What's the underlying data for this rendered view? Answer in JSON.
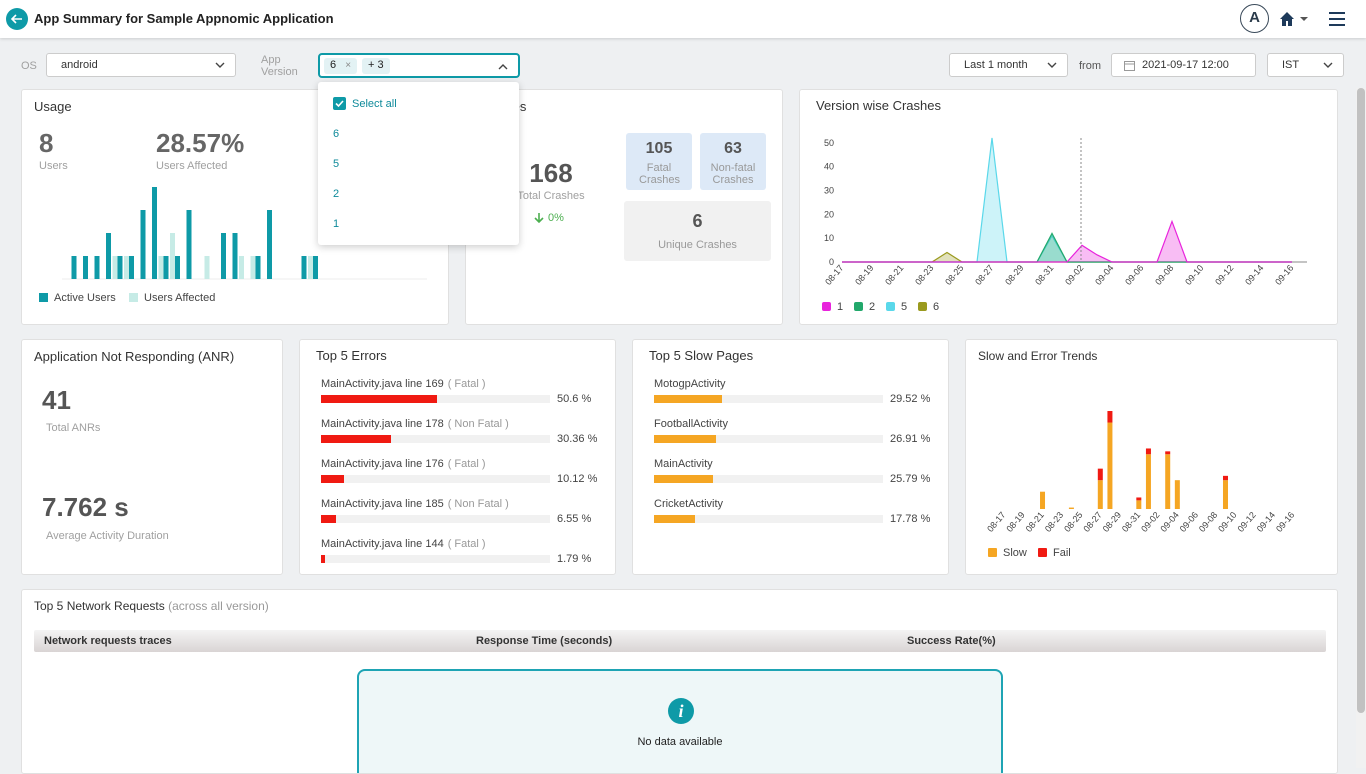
{
  "header": {
    "title": "App Summary for Sample Appnomic Application",
    "avatar": "A"
  },
  "filters": {
    "os_label": "OS",
    "os_value": "android",
    "version_label": "App Version",
    "version_chip": "6",
    "chip_remove": "×",
    "version_more": "+ 3",
    "range": "Last 1 month",
    "from_label": "from",
    "from_value": "2021-09-17 12:00",
    "timezone": "IST"
  },
  "version_dropdown": {
    "select_all": "Select all",
    "options": [
      "6",
      "5",
      "2",
      "1"
    ]
  },
  "usage": {
    "title": "Usage",
    "users": 8,
    "users_label": "Users",
    "affected": "28.57%",
    "affected_label": "Users Affected",
    "chart": {
      "type": "bar",
      "series": [
        {
          "name": "Active Users",
          "color": "#0e9aa7",
          "values": [
            1,
            1,
            1,
            2,
            1,
            1,
            3,
            4,
            1,
            1,
            3,
            0,
            0,
            2,
            2,
            0,
            1,
            3,
            0,
            0,
            1,
            1,
            0
          ]
        },
        {
          "name": "Users Affected",
          "color": "#c6ebe6",
          "values": [
            0,
            0,
            0,
            0,
            1,
            1,
            0,
            0,
            1,
            2,
            0,
            0,
            1,
            0,
            0,
            1,
            1,
            0,
            0,
            0,
            0,
            1,
            0
          ]
        }
      ]
    }
  },
  "crashes": {
    "title": "Crashes",
    "total": 168,
    "total_label": "Total Crashes",
    "change": "0%",
    "fatal": 105,
    "fatal_label": "Fatal Crashes",
    "non_fatal": 63,
    "non_fatal_label": "Non-fatal Crashes",
    "unique": 6,
    "unique_label": "Unique Crashes"
  },
  "version_crashes": {
    "title": "Version wise Crashes",
    "chart": {
      "type": "area",
      "categories": [
        "08-17",
        null,
        "08-19",
        null,
        "08-21",
        null,
        "08-23",
        null,
        "08-25",
        null,
        "08-27",
        null,
        "08-29",
        null,
        "08-31",
        null,
        "09-02",
        null,
        "09-04",
        null,
        "09-06",
        null,
        "09-08",
        null,
        "09-10",
        null,
        "09-12",
        null,
        "09-14",
        null,
        "09-16"
      ],
      "ylim": [
        0,
        52
      ],
      "yticks": [
        0,
        10,
        20,
        30,
        40,
        50
      ],
      "series": [
        {
          "name": "1",
          "color": "#e824dc",
          "values": [
            0,
            0,
            0,
            0,
            0,
            0,
            0,
            0,
            0,
            0,
            0,
            0,
            0,
            0,
            0,
            0,
            7,
            3,
            0,
            0,
            0,
            0,
            17,
            0,
            0,
            0,
            0,
            0,
            0,
            0,
            0
          ]
        },
        {
          "name": "2",
          "color": "#22a86b",
          "values": [
            0,
            0,
            0,
            0,
            0,
            0,
            0,
            0,
            0,
            0,
            0,
            0,
            0,
            0,
            12,
            0,
            0,
            0,
            0,
            0,
            0,
            0,
            0,
            0,
            0,
            0,
            0,
            0,
            0,
            0,
            0
          ]
        },
        {
          "name": "5",
          "color": "#5ad8ea",
          "values": [
            0,
            0,
            0,
            0,
            0,
            0,
            0,
            0,
            0,
            0,
            52,
            0,
            0,
            0,
            11,
            0,
            0,
            0,
            0,
            0,
            0,
            0,
            0,
            0,
            0,
            0,
            0,
            0,
            0,
            0,
            0
          ]
        },
        {
          "name": "6",
          "color": "#9a9a1e",
          "values": [
            0,
            0,
            0,
            0,
            0,
            0,
            0,
            4,
            0,
            0,
            0,
            0,
            0,
            0,
            0,
            0,
            0,
            0,
            0,
            0,
            0,
            0,
            0,
            0,
            0,
            0,
            0,
            0,
            0,
            0,
            0
          ]
        }
      ]
    }
  },
  "anr": {
    "title": "Application Not Responding (ANR)",
    "total": 41,
    "total_label": "Total ANRs",
    "duration": "7.762 s",
    "duration_label": "Average Activity Duration"
  },
  "top_errors": {
    "title": "Top 5 Errors",
    "items": [
      {
        "name": "MainActivity.java line 169",
        "tag": "( Fatal )",
        "value": 50.6,
        "value_label": "50.6 %"
      },
      {
        "name": "MainActivity.java line 178",
        "tag": "( Non Fatal )",
        "value": 30.36,
        "value_label": "30.36 %"
      },
      {
        "name": "MainActivity.java line 176",
        "tag": "( Fatal )",
        "value": 10.12,
        "value_label": "10.12 %"
      },
      {
        "name": "MainActivity.java line 185",
        "tag": "( Non Fatal )",
        "value": 6.55,
        "value_label": "6.55 %"
      },
      {
        "name": "MainActivity.java line 144",
        "tag": "( Fatal )",
        "value": 1.79,
        "value_label": "1.79 %"
      }
    ]
  },
  "slow_pages": {
    "title": "Top 5 Slow Pages",
    "items": [
      {
        "name": "MotogpActivity",
        "value": 29.52,
        "value_label": "29.52 %"
      },
      {
        "name": "FootballActivity",
        "value": 26.91,
        "value_label": "26.91 %"
      },
      {
        "name": "MainActivity",
        "value": 25.79,
        "value_label": "25.79 %"
      },
      {
        "name": "CricketActivity",
        "value": 17.78,
        "value_label": "17.78 %"
      }
    ]
  },
  "trends": {
    "title": "Slow and Error Trends",
    "chart": {
      "type": "stacked-bar",
      "categories": [
        "08-17",
        null,
        "08-19",
        null,
        "08-21",
        null,
        "08-23",
        null,
        "08-25",
        null,
        "08-27",
        null,
        "08-29",
        null,
        "08-31",
        null,
        "09-02",
        null,
        "09-04",
        null,
        "09-06",
        null,
        "09-08",
        null,
        "09-10",
        null,
        "09-12",
        null,
        "09-14",
        null,
        "09-16"
      ],
      "series": [
        {
          "name": "Slow",
          "color": "#f5a623",
          "values": [
            0,
            0,
            0,
            0,
            6,
            0,
            0,
            0.5,
            0,
            0,
            10,
            30,
            0,
            0,
            3,
            19,
            0,
            19,
            10,
            0,
            0,
            0,
            0,
            10,
            0,
            0,
            0,
            0,
            0,
            0,
            0
          ]
        },
        {
          "name": "Fail",
          "color": "#f01a12",
          "values": [
            0,
            0,
            0,
            0,
            0,
            0,
            0,
            0,
            0,
            0,
            4,
            4,
            0,
            0,
            1,
            2,
            0,
            1,
            0,
            0,
            0,
            0,
            0,
            1.5,
            0,
            0,
            0,
            0,
            0,
            0,
            0
          ]
        }
      ]
    }
  },
  "network": {
    "title": "Top 5 Network Requests",
    "subtitle": "(across all version)",
    "columns": [
      "Network requests traces",
      "Response Time (seconds)",
      "Success Rate(%)"
    ],
    "icon": "i",
    "empty": "No data available"
  }
}
